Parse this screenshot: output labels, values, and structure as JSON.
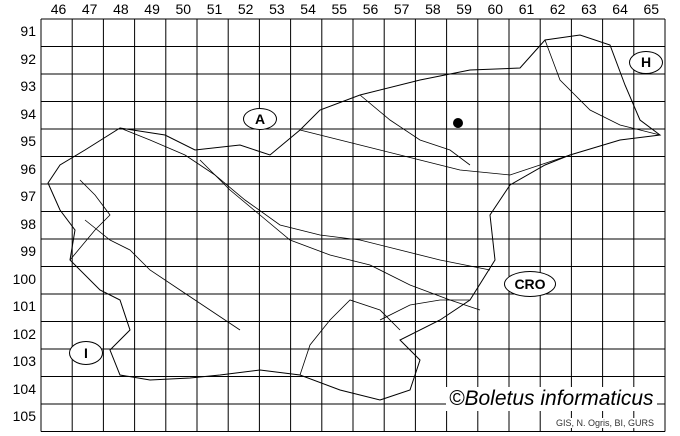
{
  "map": {
    "columns": [
      "46",
      "47",
      "48",
      "49",
      "50",
      "51",
      "52",
      "53",
      "54",
      "55",
      "56",
      "57",
      "58",
      "59",
      "60",
      "61",
      "62",
      "63",
      "64",
      "65"
    ],
    "rows": [
      "91",
      "92",
      "93",
      "94",
      "95",
      "96",
      "97",
      "98",
      "99",
      "100",
      "101",
      "102",
      "103",
      "104",
      "105"
    ],
    "country_labels": [
      {
        "id": "austria",
        "text": "A"
      },
      {
        "id": "hungary",
        "text": "H"
      },
      {
        "id": "croatia",
        "text": "CRO"
      },
      {
        "id": "italy",
        "text": "I"
      }
    ],
    "records": [
      {
        "column": "59",
        "row": "94"
      }
    ],
    "copyright": "©Boletus informaticus",
    "source": "GIS, N. Ogris, BI, GURS"
  }
}
